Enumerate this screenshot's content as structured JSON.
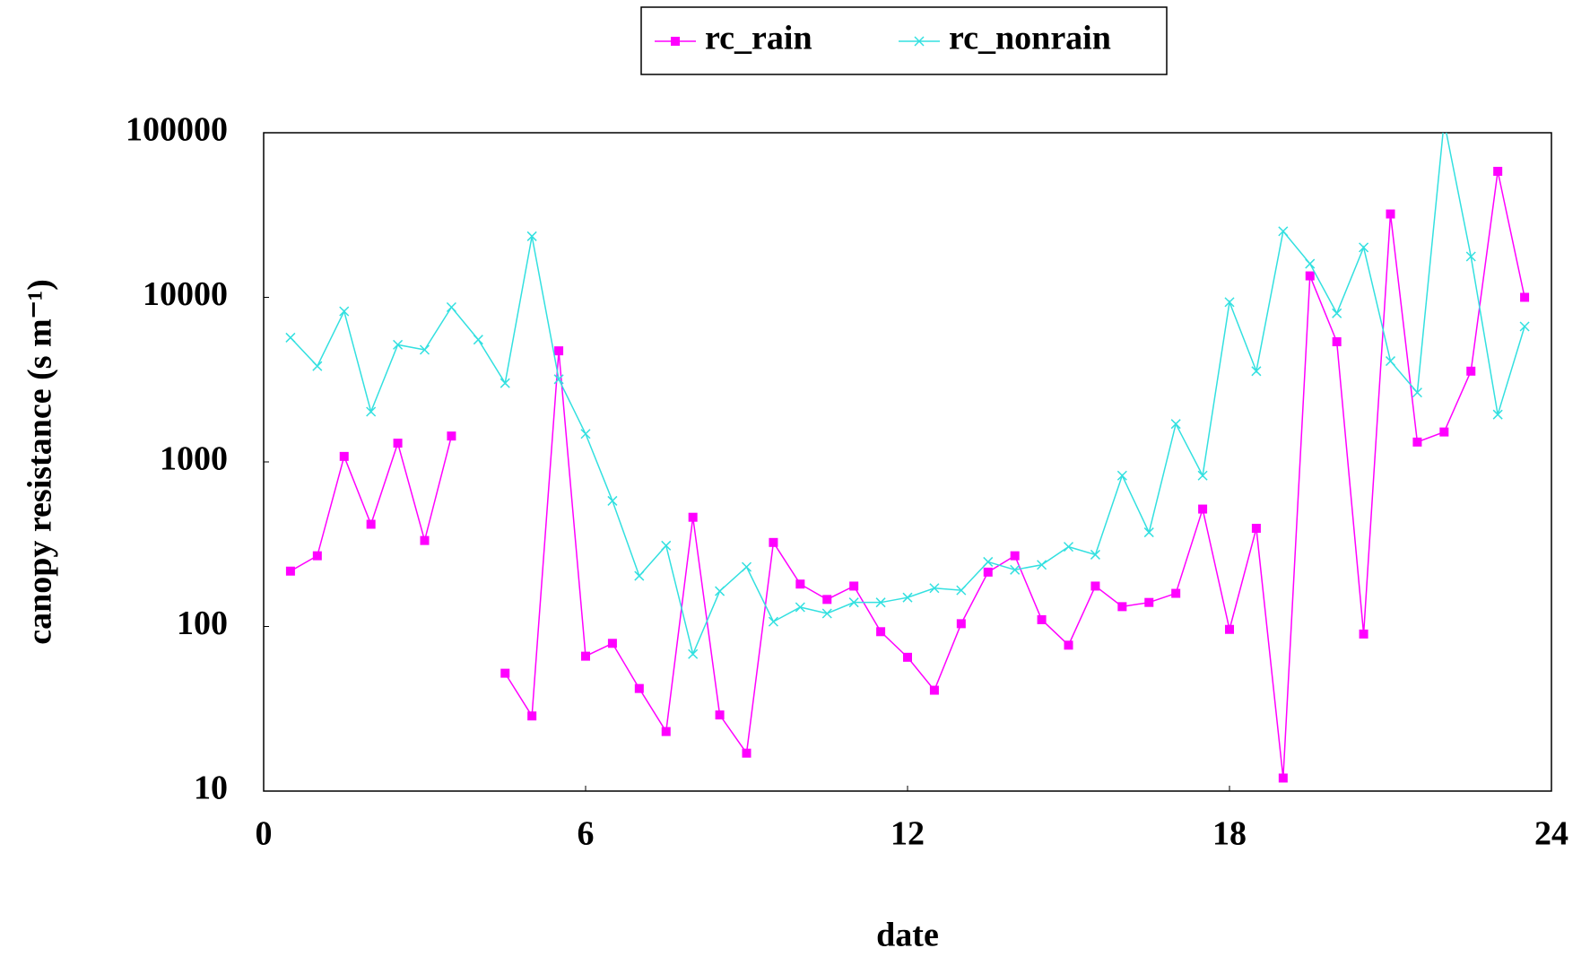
{
  "chart_data": {
    "type": "line",
    "x_label": "date",
    "y_label": "canopy resistance (s m⁻¹)",
    "log_y": true,
    "legend": "top",
    "xlim": [
      0,
      24
    ],
    "xticks": [
      0,
      6,
      12,
      18,
      24
    ],
    "ylim": [
      10,
      100000
    ],
    "yticks": [
      10,
      100,
      1000,
      10000,
      100000
    ],
    "x": [
      0.5,
      1,
      1.5,
      2,
      2.5,
      3,
      3.5,
      4,
      4.5,
      5,
      5.5,
      6,
      6.5,
      7,
      7.5,
      8,
      8.5,
      9,
      9.5,
      10,
      10.5,
      11,
      11.5,
      12,
      12.5,
      13,
      13.5,
      14,
      14.5,
      15,
      15.5,
      16,
      16.5,
      17,
      17.5,
      18,
      18.5,
      19,
      19.5,
      20,
      20.5,
      21,
      21.5,
      22,
      22.5,
      23,
      23.5
    ],
    "series": [
      {
        "name": "rc_rain",
        "color": "#ff00ff",
        "marker": "square",
        "values": [
          217,
          269,
          1080,
          418,
          1300,
          333,
          1436,
          null,
          52,
          28.6,
          4730,
          66,
          79,
          42,
          23,
          461,
          29,
          17,
          324,
          181,
          146,
          176,
          93,
          65,
          41,
          104,
          214,
          269,
          110,
          77,
          176,
          132,
          140,
          159,
          517,
          96,
          395,
          12,
          13500,
          5370,
          90,
          32100,
          1320,
          1520,
          3560,
          58300,
          10000
        ]
      },
      {
        "name": "rc_nonrain",
        "color": "#33e0e0",
        "marker": "x",
        "values": [
          5690,
          3820,
          8220,
          2020,
          5150,
          4800,
          8710,
          5530,
          3010,
          23500,
          3180,
          1480,
          580,
          203,
          310,
          68,
          164,
          230,
          107,
          131,
          120,
          140,
          140,
          150,
          171,
          166,
          247,
          221,
          237,
          305,
          273,
          826,
          373,
          1700,
          826,
          9350,
          3560,
          25200,
          16000,
          8000,
          20100,
          4100,
          2640,
          117000,
          17700,
          1940,
          6650
        ]
      }
    ]
  }
}
